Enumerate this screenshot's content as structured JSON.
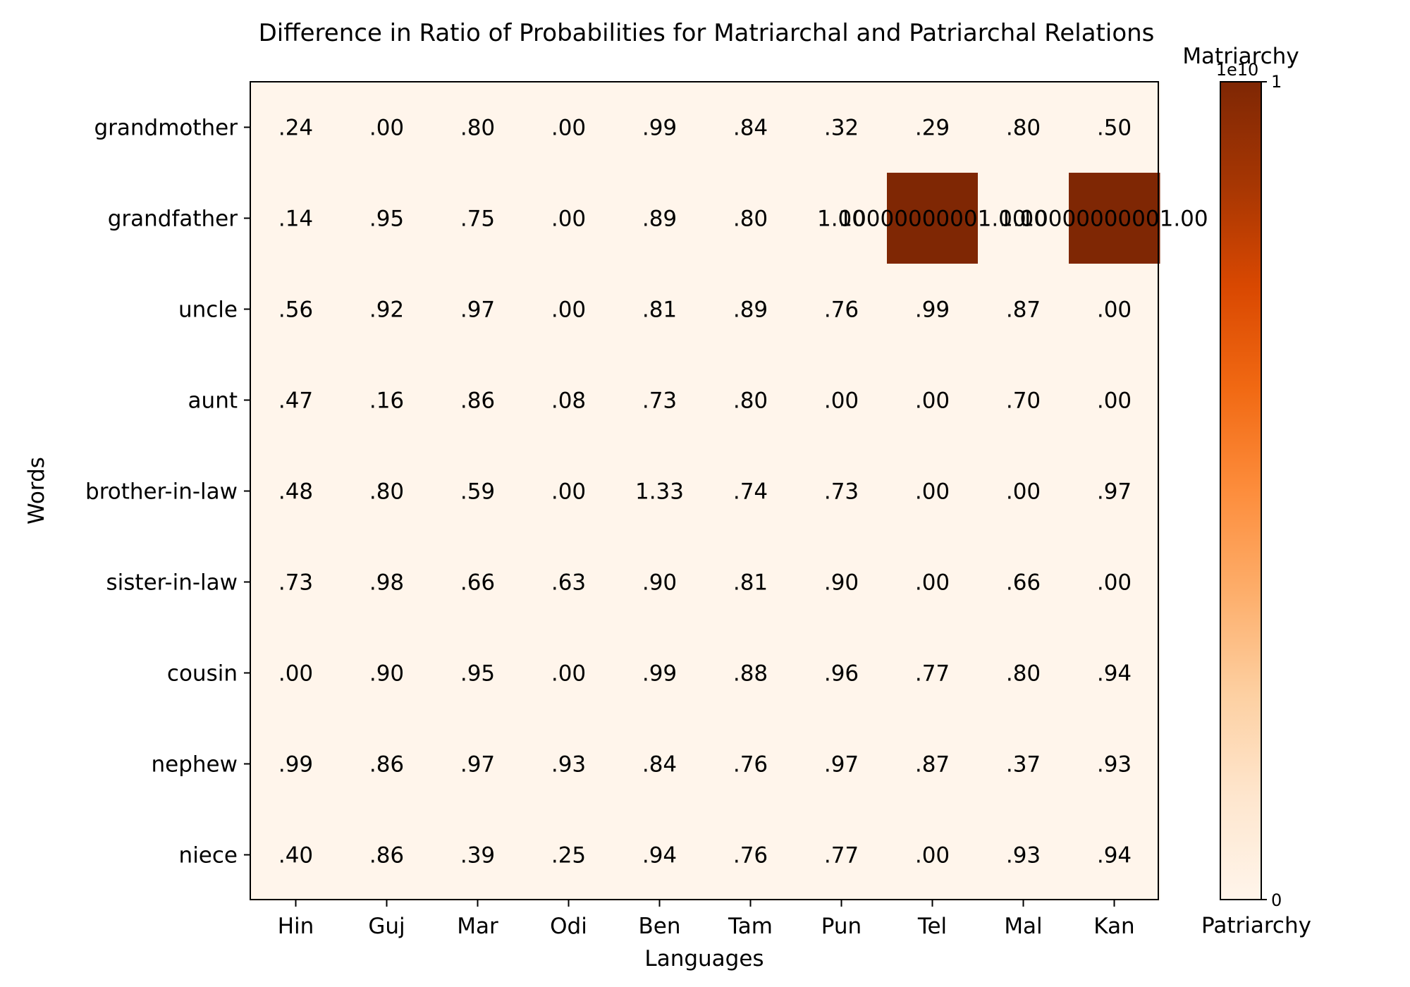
{
  "chart_data": {
    "type": "heatmap",
    "title": "Difference in Ratio of Probabilities for Matriarchal and Patriarchal Relations",
    "xlabel": "Languages",
    "ylabel": "Words",
    "x_categories": [
      "Hin",
      "Guj",
      "Mar",
      "Odi",
      "Ben",
      "Tam",
      "Pun",
      "Tel",
      "Mal",
      "Kan"
    ],
    "y_categories": [
      "grandmother",
      "grandfather",
      "uncle",
      "aunt",
      "brother-in-law",
      "sister-in-law",
      "cousin",
      "nephew",
      "niece"
    ],
    "cell_labels": [
      [
        ".24",
        ".00",
        ".80",
        ".00",
        ".99",
        ".84",
        ".32",
        ".29",
        ".80",
        ".50"
      ],
      [
        ".14",
        ".95",
        ".75",
        ".00",
        ".89",
        ".80",
        "1.00",
        "10000000001.00",
        "1.00",
        "10000000001.00"
      ],
      [
        ".56",
        ".92",
        ".97",
        ".00",
        ".81",
        ".89",
        ".76",
        ".99",
        ".87",
        ".00"
      ],
      [
        ".47",
        ".16",
        ".86",
        ".08",
        ".73",
        ".80",
        ".00",
        ".00",
        ".70",
        ".00"
      ],
      [
        ".48",
        ".80",
        ".59",
        ".00",
        "1.33",
        ".74",
        ".73",
        ".00",
        ".00",
        ".97"
      ],
      [
        ".73",
        ".98",
        ".66",
        ".63",
        ".90",
        ".81",
        ".90",
        ".00",
        ".66",
        ".00"
      ],
      [
        ".00",
        ".90",
        ".95",
        ".00",
        ".99",
        ".88",
        ".96",
        ".77",
        ".80",
        ".94"
      ],
      [
        ".99",
        ".86",
        ".97",
        ".93",
        ".84",
        ".76",
        ".97",
        ".87",
        ".37",
        ".93"
      ],
      [
        ".40",
        ".86",
        ".39",
        ".25",
        ".94",
        ".76",
        ".77",
        ".00",
        ".93",
        ".94"
      ]
    ],
    "values": [
      [
        0.24,
        0.0,
        0.8,
        0.0,
        0.99,
        0.84,
        0.32,
        0.29,
        0.8,
        0.5
      ],
      [
        0.14,
        0.95,
        0.75,
        0.0,
        0.89,
        0.8,
        1.0,
        10000000001.0,
        1.0,
        10000000001.0
      ],
      [
        0.56,
        0.92,
        0.97,
        0.0,
        0.81,
        0.89,
        0.76,
        0.99,
        0.87,
        0.0
      ],
      [
        0.47,
        0.16,
        0.86,
        0.08,
        0.73,
        0.8,
        0.0,
        0.0,
        0.7,
        0.0
      ],
      [
        0.48,
        0.8,
        0.59,
        0.0,
        1.33,
        0.74,
        0.73,
        0.0,
        0.0,
        0.97
      ],
      [
        0.73,
        0.98,
        0.66,
        0.63,
        0.9,
        0.81,
        0.9,
        0.0,
        0.66,
        0.0
      ],
      [
        0.0,
        0.9,
        0.95,
        0.0,
        0.99,
        0.88,
        0.96,
        0.77,
        0.8,
        0.94
      ],
      [
        0.99,
        0.86,
        0.97,
        0.93,
        0.84,
        0.76,
        0.97,
        0.87,
        0.37,
        0.93
      ],
      [
        0.4,
        0.86,
        0.39,
        0.25,
        0.94,
        0.76,
        0.77,
        0.0,
        0.93,
        0.94
      ]
    ],
    "colorbar": {
      "colormap": "Oranges",
      "range": [
        0,
        10000000000
      ],
      "top_label": "Matriarchy",
      "bottom_label": "Patriarchy",
      "offset_text": "1e10",
      "ticks": [
        "0",
        "1"
      ]
    },
    "colors": {
      "low": "#fff5eb",
      "high": "#7f2704"
    }
  }
}
